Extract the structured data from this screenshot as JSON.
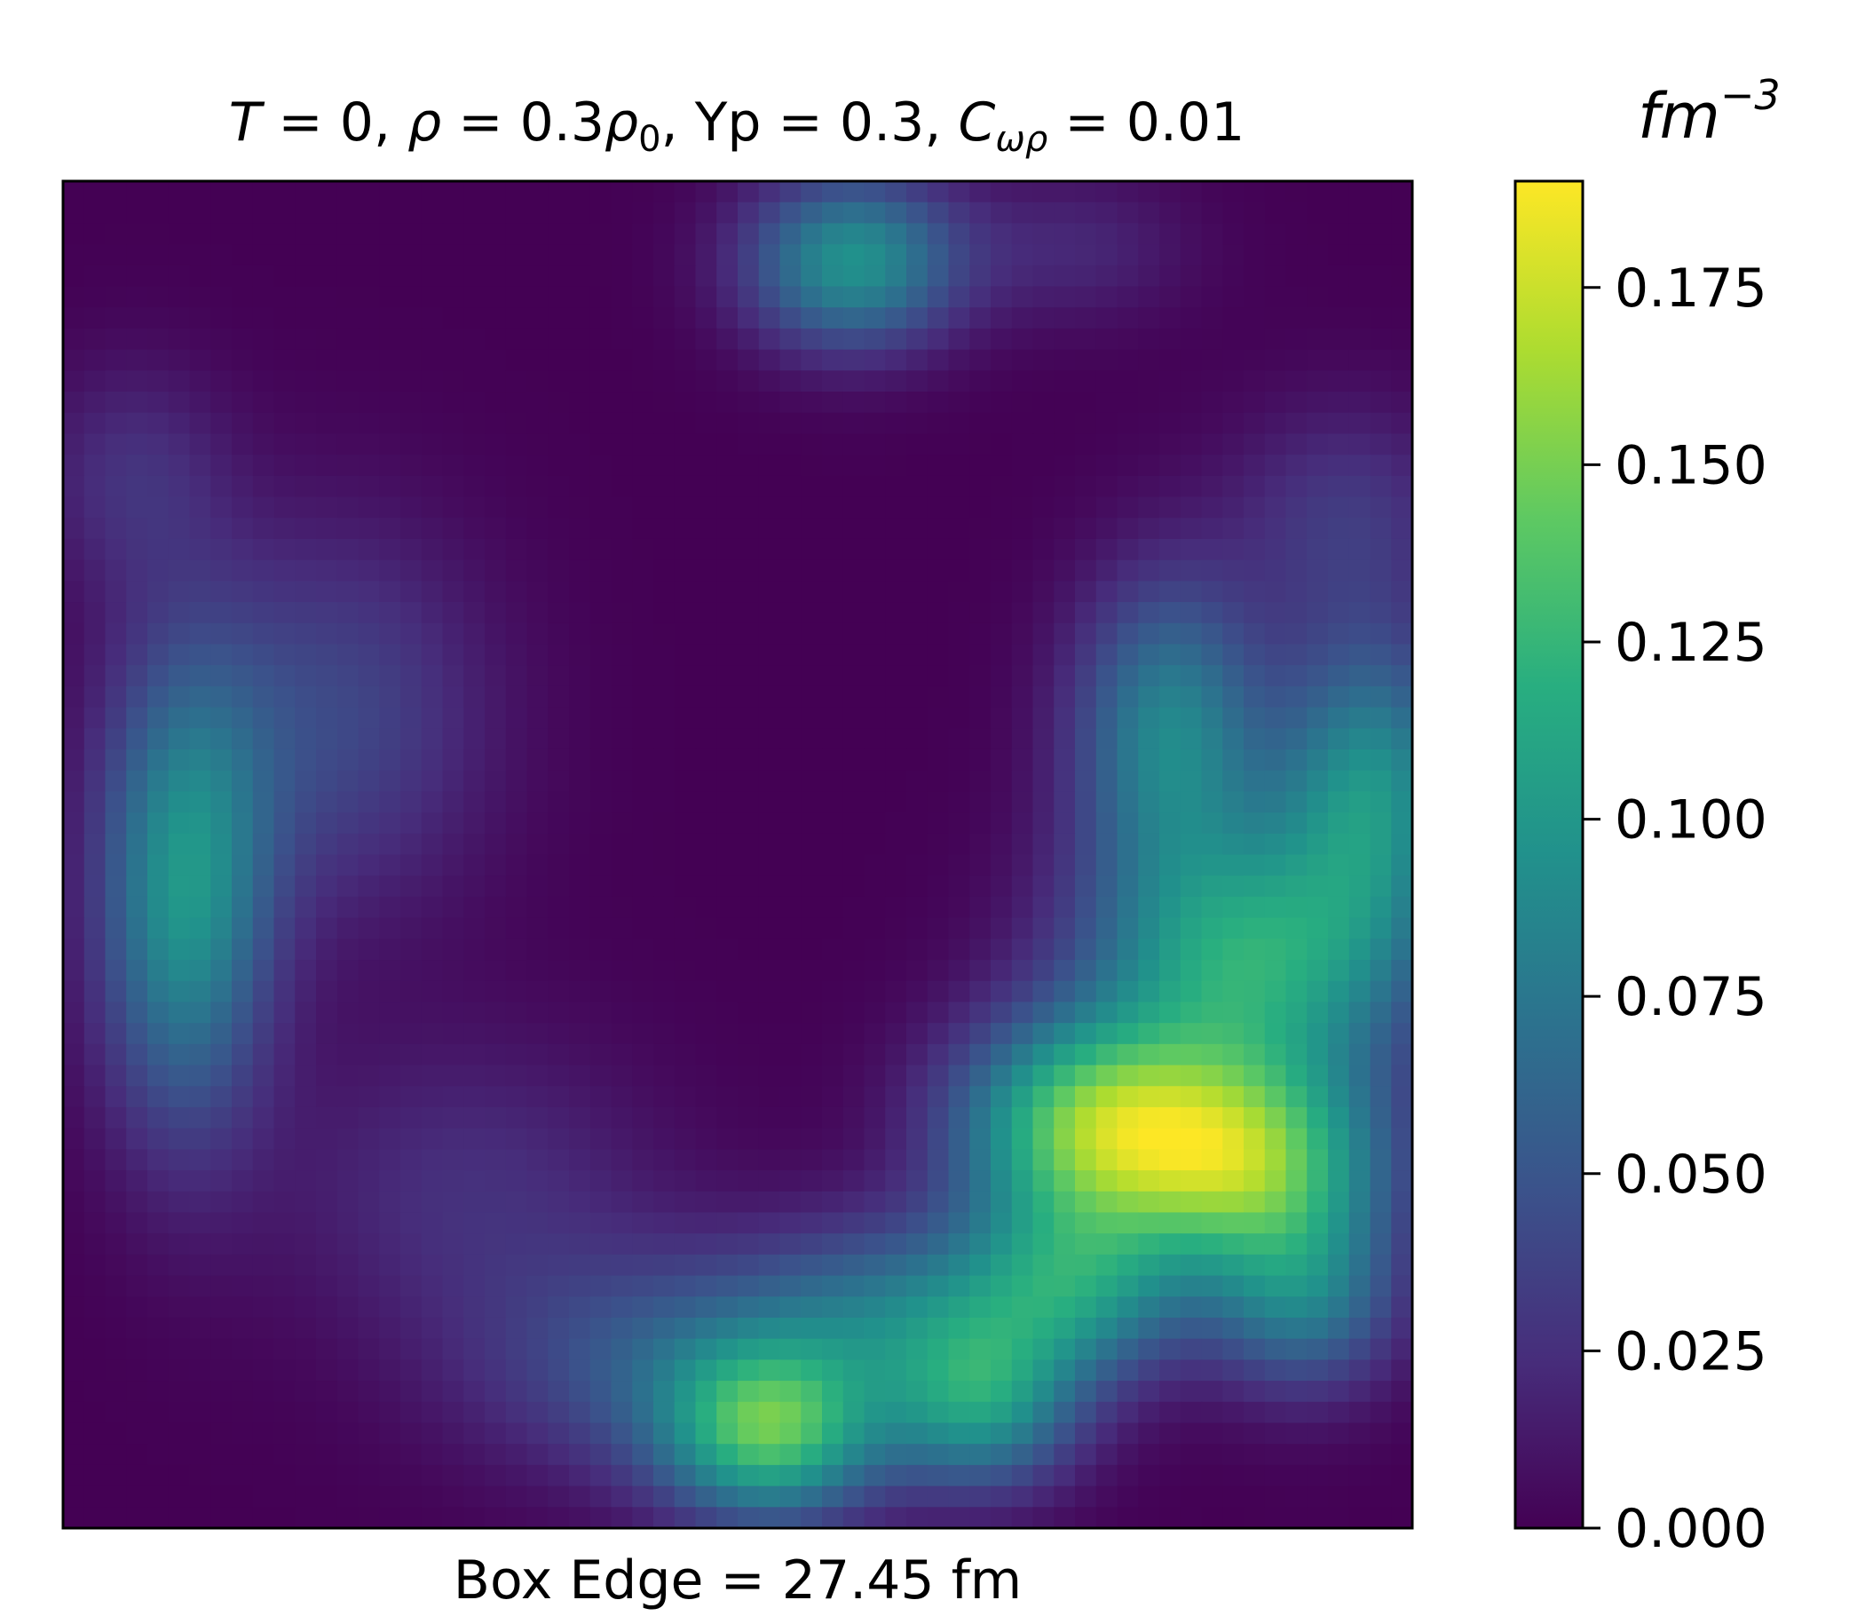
{
  "chart_data": {
    "type": "heatmap",
    "title_parts": {
      "t": "T",
      "eq": " = ",
      "t_val": "0, ",
      "rho": "ρ",
      "rho_val": "0.3",
      "rho0_sym": "ρ",
      "rho0_sub": "0",
      "yp": ", Yp = 0.3, ",
      "c": "C",
      "c_sub": "ωρ",
      "c_val": "0.01"
    },
    "xlabel": "Box Edge = 27.45 fm",
    "colorbar": {
      "label_base": "fm",
      "label_exp": "−3",
      "vmin": 0.0,
      "vmax": 0.19,
      "ticks": [
        0.0,
        0.025,
        0.05,
        0.075,
        0.1,
        0.125,
        0.15,
        0.175
      ],
      "tick_labels": [
        "0.000",
        "0.025",
        "0.050",
        "0.075",
        "0.100",
        "0.125",
        "0.150",
        "0.175"
      ],
      "colormap": "viridis"
    },
    "grid": false,
    "axis_ticks": false,
    "grid_resolution": "64x64",
    "blobs": [
      {
        "cx": 0.09,
        "cy": 0.53,
        "sx": 0.045,
        "sy": 0.12,
        "amp": 0.095
      },
      {
        "cx": 0.585,
        "cy": 0.06,
        "sx": 0.055,
        "sy": 0.045,
        "amp": 0.095
      },
      {
        "cx": 0.525,
        "cy": 0.93,
        "sx": 0.055,
        "sy": 0.045,
        "amp": 0.115
      },
      {
        "cx": 0.68,
        "cy": 0.91,
        "sx": 0.05,
        "sy": 0.045,
        "amp": 0.085
      },
      {
        "cx": 0.76,
        "cy": 0.7,
        "sx": 0.07,
        "sy": 0.055,
        "amp": 0.13
      },
      {
        "cx": 0.88,
        "cy": 0.73,
        "sx": 0.07,
        "sy": 0.055,
        "amp": 0.13
      },
      {
        "cx": 0.88,
        "cy": 0.58,
        "sx": 0.085,
        "sy": 0.07,
        "amp": 0.11
      },
      {
        "cx": 0.97,
        "cy": 0.45,
        "sx": 0.05,
        "sy": 0.08,
        "amp": 0.09
      },
      {
        "cx": 0.82,
        "cy": 0.41,
        "sx": 0.05,
        "sy": 0.08,
        "amp": 0.085
      },
      {
        "cx": 0.75,
        "cy": 0.82,
        "sx": 0.06,
        "sy": 0.05,
        "amp": 0.085
      },
      {
        "cx": 0.62,
        "cy": 0.84,
        "sx": 0.08,
        "sy": 0.05,
        "amp": 0.06
      },
      {
        "cx": 0.45,
        "cy": 0.88,
        "sx": 0.1,
        "sy": 0.06,
        "amp": 0.05
      },
      {
        "cx": 0.92,
        "cy": 0.83,
        "sx": 0.05,
        "sy": 0.05,
        "amp": 0.07
      },
      {
        "cx": 0.95,
        "cy": 0.25,
        "sx": 0.06,
        "sy": 0.06,
        "amp": 0.03
      },
      {
        "cx": 0.2,
        "cy": 0.4,
        "sx": 0.08,
        "sy": 0.1,
        "amp": 0.04
      },
      {
        "cx": 0.05,
        "cy": 0.22,
        "sx": 0.05,
        "sy": 0.06,
        "amp": 0.025
      },
      {
        "cx": 0.3,
        "cy": 0.75,
        "sx": 0.1,
        "sy": 0.08,
        "amp": 0.025
      },
      {
        "cx": 0.75,
        "cy": 0.05,
        "sx": 0.06,
        "sy": 0.04,
        "amp": 0.02
      }
    ]
  }
}
